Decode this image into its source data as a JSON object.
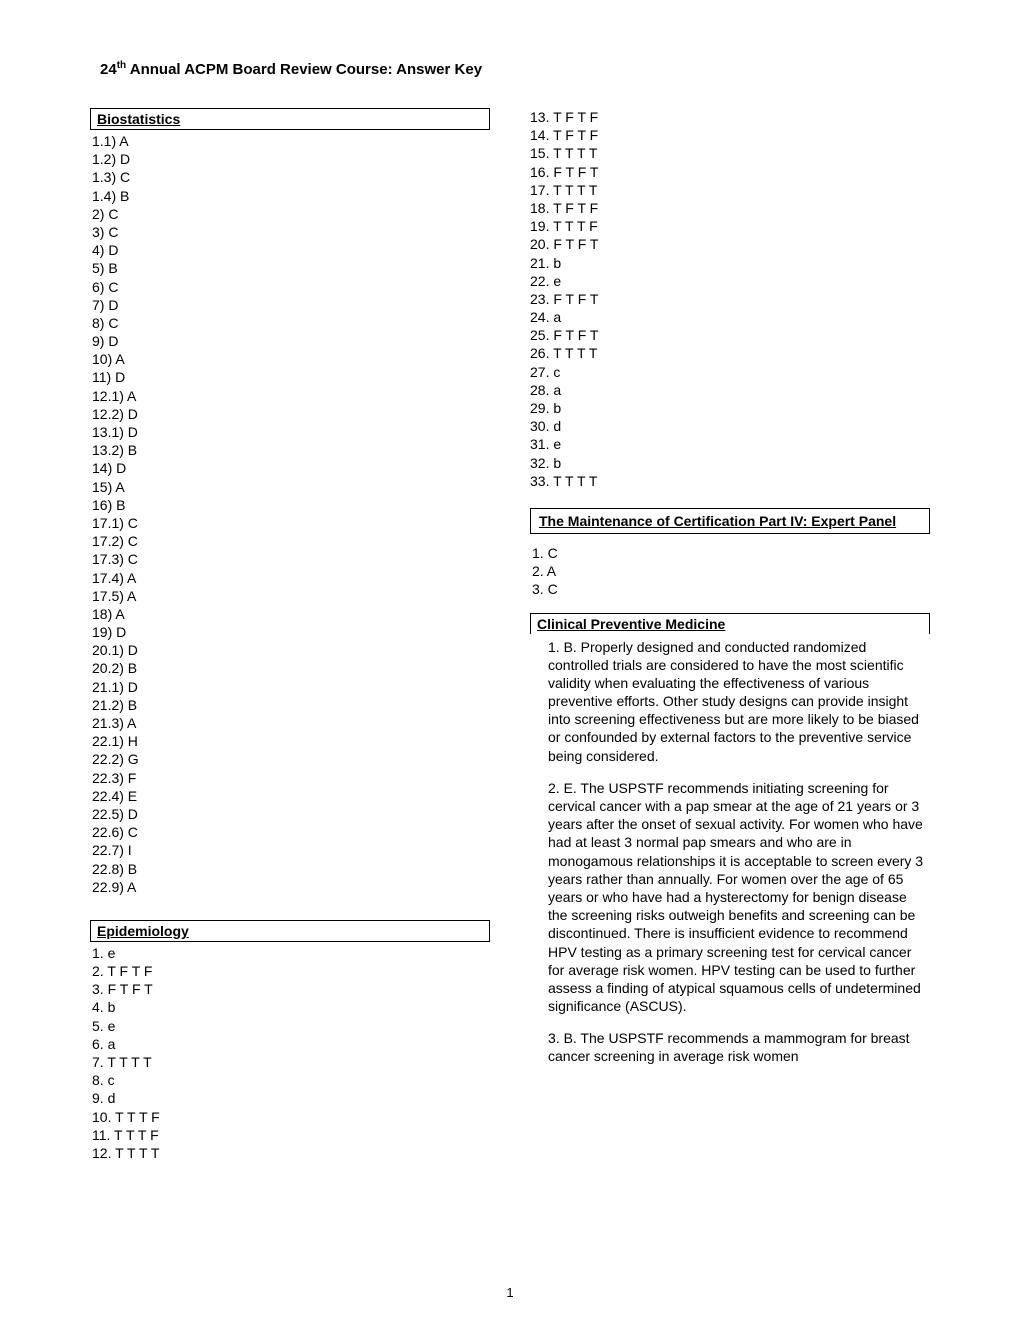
{
  "header": "24th Annual ACPM Board Review Course: Answer Key",
  "header_prefix": "24",
  "header_sup": "th",
  "header_rest": " Annual ACPM Board Review Course: Answer Key",
  "page_number": "1",
  "sections": {
    "biostatistics": {
      "title": "Biostatistics",
      "answers": [
        "1.1) A",
        "1.2)  D",
        "1.3)  C",
        "1.4)  B",
        "2)  C",
        "3)  C",
        "4) D",
        "5) B",
        "6) C",
        "7)  D",
        "8)  C",
        "9)  D",
        "10) A",
        "11)  D",
        "12.1)  A",
        "12.2)  D",
        "13.1) D",
        "13.2) B",
        "14)  D",
        "15)  A",
        "16)  B",
        "17.1)  C",
        "17.2)  C",
        "17.3)  C",
        "17.4)  A",
        "17.5)  A",
        "18)  A",
        "19)  D",
        "20.1)  D",
        "20.2) B",
        "21.1)  D",
        "21.2)  B",
        "21.3)  A",
        "22.1) H",
        "22.2)  G",
        "22.3)  F",
        "22.4)  E",
        "22.5)  D",
        "22.6)  C",
        "22.7)  I",
        "22.8)  B",
        "22.9) A"
      ]
    },
    "epidemiology": {
      "title": "Epidemiology",
      "answers_col1": [
        "1.  e",
        "2.  T F T F",
        "3.  F T F T",
        "4.  b",
        "5.  e",
        "6.  a",
        "7.  T T T T",
        "8.  c",
        "9.  d",
        "10. T T T F",
        "11. T T T F",
        "12. T T T T"
      ],
      "answers_col2": [
        "13. T F T F",
        "14. T F T F",
        "15. T T T T",
        "16. F T F T",
        "17. T T T T",
        "18. T F T F",
        "19. T T T F",
        "20. F T F T",
        "21. b",
        "22. e",
        "23. F T F T",
        "24. a",
        "25. F T F T",
        "26. T T T T",
        "27. c",
        "28. a",
        "29. b",
        "30. d",
        "31. e",
        "32. b",
        "33. T T T T"
      ]
    },
    "moc": {
      "title": "The Maintenance of Certification Part IV: Expert Panel",
      "answers": [
        "1. C",
        "2. A",
        "3. C"
      ]
    },
    "cpm": {
      "title": "Clinical Preventive Medicine",
      "explanations": [
        "1. B. Properly designed and conducted randomized controlled trials are considered to have the most scientific validity when evaluating the effectiveness of various preventive efforts.  Other study designs can provide insight into screening effectiveness but are more likely to be biased or confounded by external factors to the preventive service being considered.",
        "2. E. The USPSTF recommends initiating screening for cervical cancer with a pap smear at the age of 21 years or 3 years after the onset of sexual activity. For women who have had at least 3 normal pap smears and who are in monogamous relationships it is acceptable to screen every 3 years rather than annually. For women over the age of 65 years or who have had a hysterectomy for benign disease the screening risks outweigh benefits and screening can be discontinued. There is insufficient evidence to recommend HPV testing as a primary screening test for cervical cancer for average risk women.  HPV testing can be used to further assess a finding of atypical squamous cells of undetermined significance (ASCUS).",
        "3. B. The USPSTF recommends a mammogram for breast cancer screening in average risk women"
      ]
    }
  }
}
